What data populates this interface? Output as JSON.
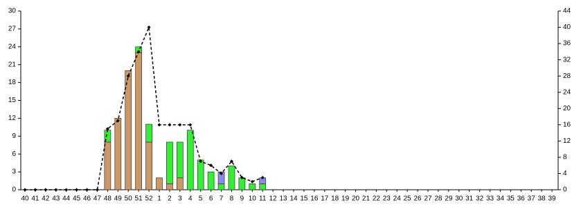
{
  "chart_data": {
    "type": "bar",
    "categories": [
      "40",
      "41",
      "42",
      "43",
      "44",
      "45",
      "46",
      "47",
      "48",
      "49",
      "50",
      "51",
      "52",
      "1",
      "2",
      "3",
      "4",
      "5",
      "6",
      "7",
      "8",
      "9",
      "10",
      "11",
      "12",
      "13",
      "14",
      "15",
      "16",
      "17",
      "18",
      "19",
      "20",
      "21",
      "22",
      "23",
      "24",
      "25",
      "26",
      "27",
      "28",
      "29",
      "30",
      "31",
      "32",
      "33",
      "34",
      "35",
      "36",
      "37",
      "38",
      "39"
    ],
    "series": [
      {
        "color": "#cc9966",
        "values": [
          0,
          0,
          0,
          0,
          0,
          0,
          0,
          0,
          8,
          12,
          20,
          23,
          8,
          2,
          1,
          2,
          0,
          0,
          0,
          0,
          0,
          0,
          0,
          0,
          0,
          0,
          0,
          0,
          0,
          0,
          0,
          0,
          0,
          0,
          0,
          0,
          0,
          0,
          0,
          0,
          0,
          0,
          0,
          0,
          0,
          0,
          0,
          0,
          0,
          0,
          0,
          0
        ]
      },
      {
        "color": "#33ee33",
        "values": [
          0,
          0,
          0,
          0,
          0,
          0,
          0,
          0,
          2,
          0,
          0,
          1,
          3,
          0,
          7,
          6,
          10,
          5,
          3,
          1,
          4,
          2,
          1,
          1,
          0,
          0,
          0,
          0,
          0,
          0,
          0,
          0,
          0,
          0,
          0,
          0,
          0,
          0,
          0,
          0,
          0,
          0,
          0,
          0,
          0,
          0,
          0,
          0,
          0,
          0,
          0,
          0
        ]
      },
      {
        "color": "#8888ee",
        "values": [
          0,
          0,
          0,
          0,
          0,
          0,
          0,
          0,
          0,
          0,
          0,
          0,
          0,
          0,
          0,
          0,
          0,
          0,
          0,
          2,
          0,
          0,
          0,
          1,
          0,
          0,
          0,
          0,
          0,
          0,
          0,
          0,
          0,
          0,
          0,
          0,
          0,
          0,
          0,
          0,
          0,
          0,
          0,
          0,
          0,
          0,
          0,
          0,
          0,
          0,
          0,
          0
        ]
      },
      {
        "type": "line",
        "axis": "y2",
        "color": "#000000",
        "values": [
          0,
          0,
          0,
          0,
          0,
          0,
          0,
          0,
          15,
          17,
          28,
          34,
          40,
          16,
          16,
          16,
          16,
          7,
          6,
          4,
          7,
          3,
          2,
          3,
          null,
          null,
          null,
          null,
          null,
          null,
          null,
          null,
          null,
          null,
          null,
          null,
          null,
          null,
          null,
          null,
          null,
          null,
          null,
          null,
          null,
          null,
          null,
          null,
          null,
          null,
          null,
          null
        ]
      }
    ],
    "ylim": [
      0,
      30
    ],
    "yticks": [
      0,
      3,
      6,
      9,
      12,
      15,
      18,
      21,
      24,
      27,
      30
    ],
    "y2lim": [
      0,
      44
    ],
    "y2ticks": [
      0,
      4,
      8,
      12,
      16,
      20,
      24,
      28,
      32,
      36,
      40,
      44
    ]
  }
}
